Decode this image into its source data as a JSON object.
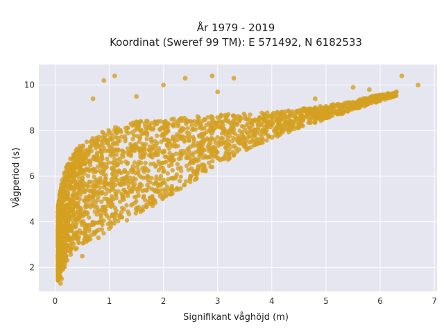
{
  "chart_data": {
    "type": "scatter",
    "title_line1": "År 1979 - 2019",
    "title_line2": "Koordinat (Sweref 99 TM): E 571492, N 6182533",
    "xlabel": "Signifikant våghöjd (m)",
    "ylabel": "Vågperiod (s)",
    "xlim": [
      -0.3,
      7.05
    ],
    "ylim": [
      0.95,
      10.9
    ],
    "xticks": [
      "0",
      "1",
      "2",
      "3",
      "4",
      "5",
      "6",
      "7"
    ],
    "yticks": [
      "2",
      "4",
      "6",
      "8",
      "10"
    ],
    "grid": true,
    "marker_color": "#d4a020",
    "plot_background": "#e5e6ef",
    "series": [
      {
        "points": [
          [
            0.1,
            1.3
          ],
          [
            0.12,
            1.5
          ],
          [
            0.1,
            2.0
          ],
          [
            0.12,
            2.6
          ],
          [
            0.15,
            3.0
          ],
          [
            0.2,
            3.6
          ],
          [
            0.2,
            4.5
          ],
          [
            0.25,
            5.0
          ],
          [
            0.3,
            5.5
          ],
          [
            0.3,
            6.0
          ],
          [
            0.4,
            6.4
          ],
          [
            0.5,
            6.8
          ],
          [
            0.6,
            7.1
          ],
          [
            0.5,
            2.5
          ],
          [
            0.8,
            3.3
          ],
          [
            1.0,
            3.7
          ],
          [
            1.2,
            4.2
          ],
          [
            1.5,
            4.6
          ],
          [
            1.8,
            4.8
          ],
          [
            2.0,
            5.2
          ],
          [
            2.5,
            6.0
          ],
          [
            3.0,
            6.8
          ],
          [
            3.5,
            7.3
          ],
          [
            4.0,
            7.7
          ],
          [
            4.5,
            8.2
          ],
          [
            5.0,
            8.6
          ],
          [
            5.5,
            9.0
          ],
          [
            6.0,
            9.4
          ],
          [
            6.3,
            9.7
          ],
          [
            6.7,
            10.0
          ],
          [
            6.4,
            10.4
          ],
          [
            5.5,
            9.9
          ],
          [
            5.8,
            9.8
          ],
          [
            4.8,
            9.4
          ],
          [
            3.0,
            9.7
          ],
          [
            2.9,
            10.4
          ],
          [
            2.4,
            10.3
          ],
          [
            1.1,
            10.4
          ],
          [
            0.9,
            10.2
          ],
          [
            0.7,
            9.4
          ],
          [
            1.5,
            9.5
          ],
          [
            2.0,
            10.0
          ],
          [
            3.3,
            10.3
          ],
          [
            1.8,
            4.7
          ]
        ]
      }
    ]
  }
}
